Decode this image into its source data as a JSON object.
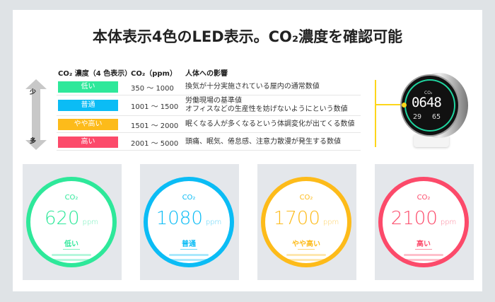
{
  "title": "本体表示4色のLED表示。CO₂濃度を確認可能",
  "table": {
    "headers": [
      "CO₂ 濃度（4 色表示）",
      "CO₂（ppm）",
      "人体への影響"
    ],
    "arrow": {
      "top": "少",
      "bottom": "多"
    },
    "rows": [
      {
        "level": "低い",
        "color": "#2ee89a",
        "range": "350 〜 1000",
        "effect": [
          "換気が十分実施されている屋内の通常数値"
        ]
      },
      {
        "level": "普通",
        "color": "#0bbcf5",
        "range": "1001 〜 1500",
        "effect": [
          "労働現場の基準値",
          "オフィスなどの生産性を妨げないようにという数値"
        ]
      },
      {
        "level": "やや高い",
        "color": "#fdbb1a",
        "range": "1501 〜 2000",
        "effect": [
          "眠くなる人が多くなるという体調変化が出てくる数値"
        ]
      },
      {
        "level": "高い",
        "color": "#fc4a6a",
        "range": "2001 〜 5000",
        "effect": [
          "頭痛、眠気、倦怠感、注意力散漫が発生する数値"
        ]
      }
    ]
  },
  "device": {
    "co2_label": "CO₂",
    "reading": "0648",
    "temp": "29",
    "humidity": "65",
    "accent": "#fdd61a"
  },
  "cards": [
    {
      "label": "CO₂",
      "value": "620",
      "unit": "ppm",
      "status": "低い",
      "color": "#2ee89a"
    },
    {
      "label": "CO₂",
      "value": "1080",
      "unit": "ppm",
      "status": "普通",
      "color": "#0bbcf5"
    },
    {
      "label": "CO₂",
      "value": "1700",
      "unit": "ppm",
      "status": "やや高い",
      "color": "#fdbb1a"
    },
    {
      "label": "CO₂",
      "value": "2100",
      "unit": "ppm",
      "status": "高い",
      "color": "#fc4a6a"
    }
  ]
}
